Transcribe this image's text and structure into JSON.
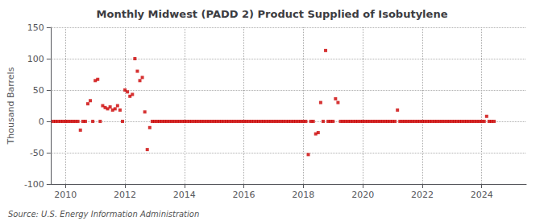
{
  "chart_data": {
    "type": "scatter",
    "title": "Monthly Midwest (PADD 2) Product Supplied of Isobutylene",
    "ylabel": "Thousand Barrels",
    "annotations": [
      "Source: U.S. Energy Information Administration"
    ],
    "color": "#cc0000",
    "marker": "square",
    "grid": true,
    "xlim": [
      2009.5,
      2025.5
    ],
    "xticks": [
      2010,
      2012,
      2014,
      2016,
      2018,
      2020,
      2022,
      2024
    ],
    "ylim": [
      -100,
      150
    ],
    "yticks": [
      -100,
      -50,
      0,
      50,
      100,
      150
    ],
    "x": [
      2009.5833,
      2009.6667,
      2009.75,
      2009.8333,
      2009.9167,
      2010,
      2010.0833,
      2010.1667,
      2010.25,
      2010.3333,
      2010.4167,
      2010.5,
      2010.5833,
      2010.6667,
      2010.75,
      2010.8333,
      2010.9167,
      2011,
      2011.0833,
      2011.1667,
      2011.25,
      2011.3333,
      2011.4167,
      2011.5,
      2011.5833,
      2011.6667,
      2011.75,
      2011.8333,
      2011.9167,
      2012,
      2012.0833,
      2012.1667,
      2012.25,
      2012.3333,
      2012.4167,
      2012.5,
      2012.5833,
      2012.6667,
      2012.75,
      2012.8333,
      2012.9167,
      2013,
      2013.0833,
      2013.1667,
      2013.25,
      2013.3333,
      2013.4167,
      2013.5,
      2013.5833,
      2013.6667,
      2013.75,
      2013.8333,
      2013.9167,
      2014,
      2014.0833,
      2014.1667,
      2014.25,
      2014.3333,
      2014.4167,
      2014.5,
      2014.5833,
      2014.6667,
      2014.75,
      2014.8333,
      2014.9167,
      2015,
      2015.0833,
      2015.1667,
      2015.25,
      2015.3333,
      2015.4167,
      2015.5,
      2015.5833,
      2015.6667,
      2015.75,
      2015.8333,
      2015.9167,
      2016,
      2016.0833,
      2016.1667,
      2016.25,
      2016.3333,
      2016.4167,
      2016.5,
      2016.5833,
      2016.6667,
      2016.75,
      2016.8333,
      2016.9167,
      2017,
      2017.0833,
      2017.1667,
      2017.25,
      2017.3333,
      2017.4167,
      2017.5,
      2017.5833,
      2017.6667,
      2017.75,
      2017.8333,
      2017.9167,
      2018,
      2018.0833,
      2018.1667,
      2018.25,
      2018.3333,
      2018.4167,
      2018.5,
      2018.5833,
      2018.6667,
      2018.75,
      2018.8333,
      2018.9167,
      2019,
      2019.0833,
      2019.1667,
      2019.25,
      2019.3333,
      2019.4167,
      2019.5,
      2019.5833,
      2019.6667,
      2019.75,
      2019.8333,
      2019.9167,
      2020,
      2020.0833,
      2020.1667,
      2020.25,
      2020.3333,
      2020.4167,
      2020.5,
      2020.5833,
      2020.6667,
      2020.75,
      2020.8333,
      2020.9167,
      2021,
      2021.0833,
      2021.1667,
      2021.25,
      2021.3333,
      2021.4167,
      2021.5,
      2021.5833,
      2021.6667,
      2021.75,
      2021.8333,
      2021.9167,
      2022,
      2022.0833,
      2022.1667,
      2022.25,
      2022.3333,
      2022.4167,
      2022.5,
      2022.5833,
      2022.6667,
      2022.75,
      2022.8333,
      2022.9167,
      2023,
      2023.0833,
      2023.1667,
      2023.25,
      2023.3333,
      2023.4167,
      2023.5,
      2023.5833,
      2023.6667,
      2023.75,
      2023.8333,
      2023.9167,
      2024,
      2024.0833,
      2024.1667,
      2024.25,
      2024.3333,
      2024.4167
    ],
    "values": [
      0,
      0,
      0,
      0,
      0,
      0,
      0,
      0,
      0,
      0,
      0,
      -14,
      0,
      0,
      28,
      33,
      0,
      65,
      67,
      0,
      25,
      22,
      20,
      23,
      18,
      20,
      25,
      18,
      0,
      50,
      47,
      40,
      43,
      100,
      80,
      65,
      70,
      15,
      -45,
      -10,
      0,
      0,
      0,
      0,
      0,
      0,
      0,
      0,
      0,
      0,
      0,
      0,
      0,
      0,
      0,
      0,
      0,
      0,
      0,
      0,
      0,
      0,
      0,
      0,
      0,
      0,
      0,
      0,
      0,
      0,
      0,
      0,
      0,
      0,
      0,
      0,
      0,
      0,
      0,
      0,
      0,
      0,
      0,
      0,
      0,
      0,
      0,
      0,
      0,
      0,
      0,
      0,
      0,
      0,
      0,
      0,
      0,
      0,
      0,
      0,
      0,
      0,
      0,
      -53,
      0,
      0,
      -20,
      -18,
      30,
      0,
      113,
      0,
      0,
      0,
      36,
      30,
      0,
      0,
      0,
      0,
      0,
      0,
      0,
      0,
      0,
      0,
      0,
      0,
      0,
      0,
      0,
      0,
      0,
      0,
      0,
      0,
      0,
      0,
      0,
      18,
      0,
      0,
      0,
      0,
      0,
      0,
      0,
      0,
      0,
      0,
      0,
      0,
      0,
      0,
      0,
      0,
      0,
      0,
      0,
      0,
      0,
      0,
      0,
      0,
      0,
      0,
      0,
      0,
      0,
      0,
      0,
      0,
      0,
      0,
      0,
      8,
      0,
      0,
      0
    ]
  }
}
